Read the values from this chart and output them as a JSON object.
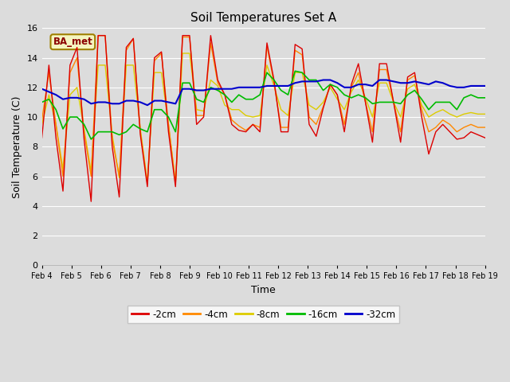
{
  "title": "Soil Temperatures Set A",
  "xlabel": "Time",
  "ylabel": "Soil Temperature (C)",
  "ylim": [
    0,
    16
  ],
  "yticks": [
    0,
    2,
    4,
    6,
    8,
    10,
    12,
    14,
    16
  ],
  "background_color": "#dcdcdc",
  "legend_label": "BA_met",
  "colors": {
    "-2cm": "#dd0000",
    "-4cm": "#ff8800",
    "-8cm": "#ddcc00",
    "-16cm": "#00bb00",
    "-32cm": "#0000cc"
  },
  "x_labels": [
    "Feb 4",
    "Feb 5",
    "Feb 6",
    "Feb 7",
    "Feb 8",
    "Feb 9",
    "Feb 10",
    "Feb 11",
    "Feb 12",
    "Feb 13",
    "Feb 14",
    "Feb 15",
    "Feb 16",
    "Feb 17",
    "Feb 18",
    "Feb 19"
  ],
  "data_2cm": [
    8.6,
    13.5,
    8.6,
    5.0,
    13.5,
    14.7,
    8.5,
    4.3,
    15.5,
    15.5,
    8.0,
    4.6,
    14.7,
    15.3,
    8.8,
    5.3,
    14.0,
    14.4,
    9.0,
    5.3,
    15.5,
    15.5,
    9.5,
    10.0,
    15.5,
    12.5,
    11.5,
    9.5,
    9.1,
    9.0,
    9.5,
    9.0,
    15.0,
    12.5,
    9.0,
    9.0,
    14.9,
    14.6,
    9.5,
    8.7,
    10.6,
    12.2,
    11.5,
    9.0,
    12.2,
    13.6,
    11.0,
    8.3,
    13.6,
    13.6,
    11.0,
    8.3,
    12.7,
    13.0,
    10.0,
    7.5,
    9.0,
    9.5,
    9.0,
    8.5,
    8.6,
    9.0,
    8.8,
    8.6
  ],
  "data_4cm": [
    9.8,
    13.0,
    9.5,
    6.0,
    13.0,
    14.0,
    9.0,
    6.0,
    15.5,
    15.5,
    8.5,
    6.0,
    14.5,
    15.3,
    9.0,
    5.5,
    13.8,
    14.3,
    9.5,
    5.5,
    15.4,
    15.4,
    10.1,
    10.1,
    15.0,
    12.3,
    11.5,
    9.8,
    9.4,
    9.1,
    9.5,
    9.3,
    14.8,
    12.3,
    9.3,
    9.3,
    14.5,
    14.2,
    10.0,
    9.5,
    10.7,
    12.2,
    11.5,
    9.5,
    12.0,
    13.0,
    11.0,
    9.0,
    13.2,
    13.2,
    11.0,
    9.0,
    12.5,
    12.8,
    10.5,
    9.0,
    9.3,
    9.8,
    9.5,
    9.0,
    9.3,
    9.5,
    9.3,
    9.3
  ],
  "data_8cm": [
    9.5,
    11.5,
    9.5,
    6.5,
    11.5,
    12.0,
    9.2,
    6.3,
    13.5,
    13.5,
    8.8,
    5.9,
    13.5,
    13.5,
    9.2,
    5.6,
    13.0,
    13.0,
    9.5,
    5.6,
    14.3,
    14.3,
    10.5,
    10.4,
    12.5,
    12.1,
    10.8,
    10.5,
    10.5,
    10.1,
    10.0,
    10.1,
    13.5,
    12.1,
    10.5,
    10.1,
    13.0,
    13.0,
    10.8,
    10.5,
    11.0,
    12.0,
    11.2,
    10.5,
    11.7,
    12.5,
    11.3,
    10.0,
    12.3,
    12.3,
    11.0,
    10.0,
    11.9,
    12.2,
    10.8,
    10.0,
    10.3,
    10.5,
    10.2,
    10.0,
    10.2,
    10.3,
    10.2,
    10.2
  ],
  "data_16cm": [
    11.0,
    11.2,
    10.5,
    9.2,
    10.0,
    10.0,
    9.5,
    8.5,
    9.0,
    9.0,
    9.0,
    8.8,
    9.0,
    9.5,
    9.2,
    9.0,
    10.5,
    10.5,
    10.0,
    9.0,
    12.3,
    12.3,
    11.2,
    11.0,
    12.0,
    11.8,
    11.5,
    11.0,
    11.5,
    11.2,
    11.2,
    11.5,
    13.0,
    12.5,
    11.8,
    11.5,
    13.1,
    13.0,
    12.5,
    12.5,
    11.8,
    12.2,
    12.0,
    11.5,
    11.3,
    11.5,
    11.3,
    10.9,
    11.0,
    11.0,
    11.0,
    10.9,
    11.5,
    11.8,
    11.2,
    10.5,
    11.0,
    11.0,
    11.0,
    10.5,
    11.3,
    11.5,
    11.3,
    11.3
  ],
  "data_32cm": [
    11.9,
    11.7,
    11.5,
    11.2,
    11.3,
    11.3,
    11.2,
    10.9,
    11.0,
    11.0,
    10.9,
    10.9,
    11.1,
    11.1,
    11.0,
    10.8,
    11.1,
    11.1,
    11.0,
    10.9,
    11.9,
    11.9,
    11.8,
    11.8,
    11.9,
    11.9,
    11.9,
    11.9,
    12.0,
    12.0,
    12.0,
    12.0,
    12.1,
    12.1,
    12.1,
    12.1,
    12.3,
    12.4,
    12.4,
    12.4,
    12.5,
    12.5,
    12.3,
    12.0,
    12.0,
    12.2,
    12.2,
    12.1,
    12.5,
    12.5,
    12.4,
    12.3,
    12.3,
    12.4,
    12.3,
    12.2,
    12.4,
    12.3,
    12.1,
    12.0,
    12.0,
    12.1,
    12.1,
    12.1
  ]
}
